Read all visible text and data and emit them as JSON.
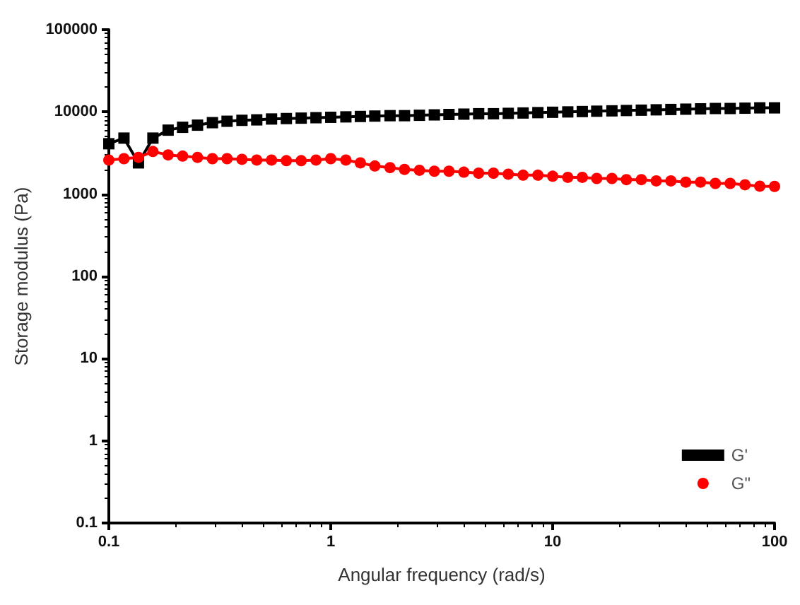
{
  "chart_data": {
    "type": "line",
    "xlabel": "Angular frequency (rad/s)",
    "ylabel": "Storage modulus (Pa)",
    "log": "xy",
    "grid": false,
    "legend": "bottom right",
    "x": [
      0.1,
      0.117,
      0.136,
      0.158,
      0.185,
      0.215,
      0.251,
      0.293,
      0.341,
      0.398,
      0.464,
      0.541,
      0.631,
      0.736,
      0.858,
      1,
      1.17,
      1.36,
      1.58,
      1.85,
      2.15,
      2.51,
      2.93,
      3.41,
      3.98,
      4.64,
      5.41,
      6.31,
      7.36,
      8.58,
      10,
      11.7,
      13.6,
      15.8,
      18.5,
      21.5,
      25.1,
      29.3,
      34.1,
      39.8,
      46.4,
      54.1,
      63.1,
      73.6,
      85.8,
      100
    ],
    "xlim": [
      0.1,
      100
    ],
    "xticks": [
      0.1,
      1,
      10,
      100
    ],
    "ylim": [
      0.1,
      100000
    ],
    "yticks": [
      0.1,
      1,
      10,
      100,
      1000,
      10000,
      100000
    ],
    "series": [
      {
        "name": "G'",
        "color": "#000000",
        "marker": "square",
        "values": [
          4100,
          4800,
          2400,
          4800,
          6000,
          6500,
          6900,
          7400,
          7700,
          7900,
          8000,
          8200,
          8300,
          8400,
          8500,
          8600,
          8700,
          8800,
          8900,
          9000,
          9000,
          9100,
          9200,
          9300,
          9400,
          9500,
          9500,
          9600,
          9700,
          9800,
          9900,
          10000,
          10100,
          10200,
          10300,
          10400,
          10500,
          10600,
          10700,
          10800,
          10900,
          11000,
          11000,
          11100,
          11200,
          11200
        ]
      },
      {
        "name": "G\"",
        "color": "#ff0000",
        "marker": "circle",
        "values": [
          2600,
          2700,
          2800,
          3300,
          3000,
          2900,
          2800,
          2700,
          2700,
          2650,
          2600,
          2600,
          2550,
          2550,
          2600,
          2700,
          2600,
          2400,
          2200,
          2100,
          2000,
          1950,
          1900,
          1900,
          1850,
          1800,
          1800,
          1750,
          1700,
          1700,
          1650,
          1600,
          1600,
          1550,
          1550,
          1500,
          1500,
          1450,
          1450,
          1400,
          1400,
          1350,
          1350,
          1300,
          1250,
          1240
        ]
      }
    ]
  }
}
